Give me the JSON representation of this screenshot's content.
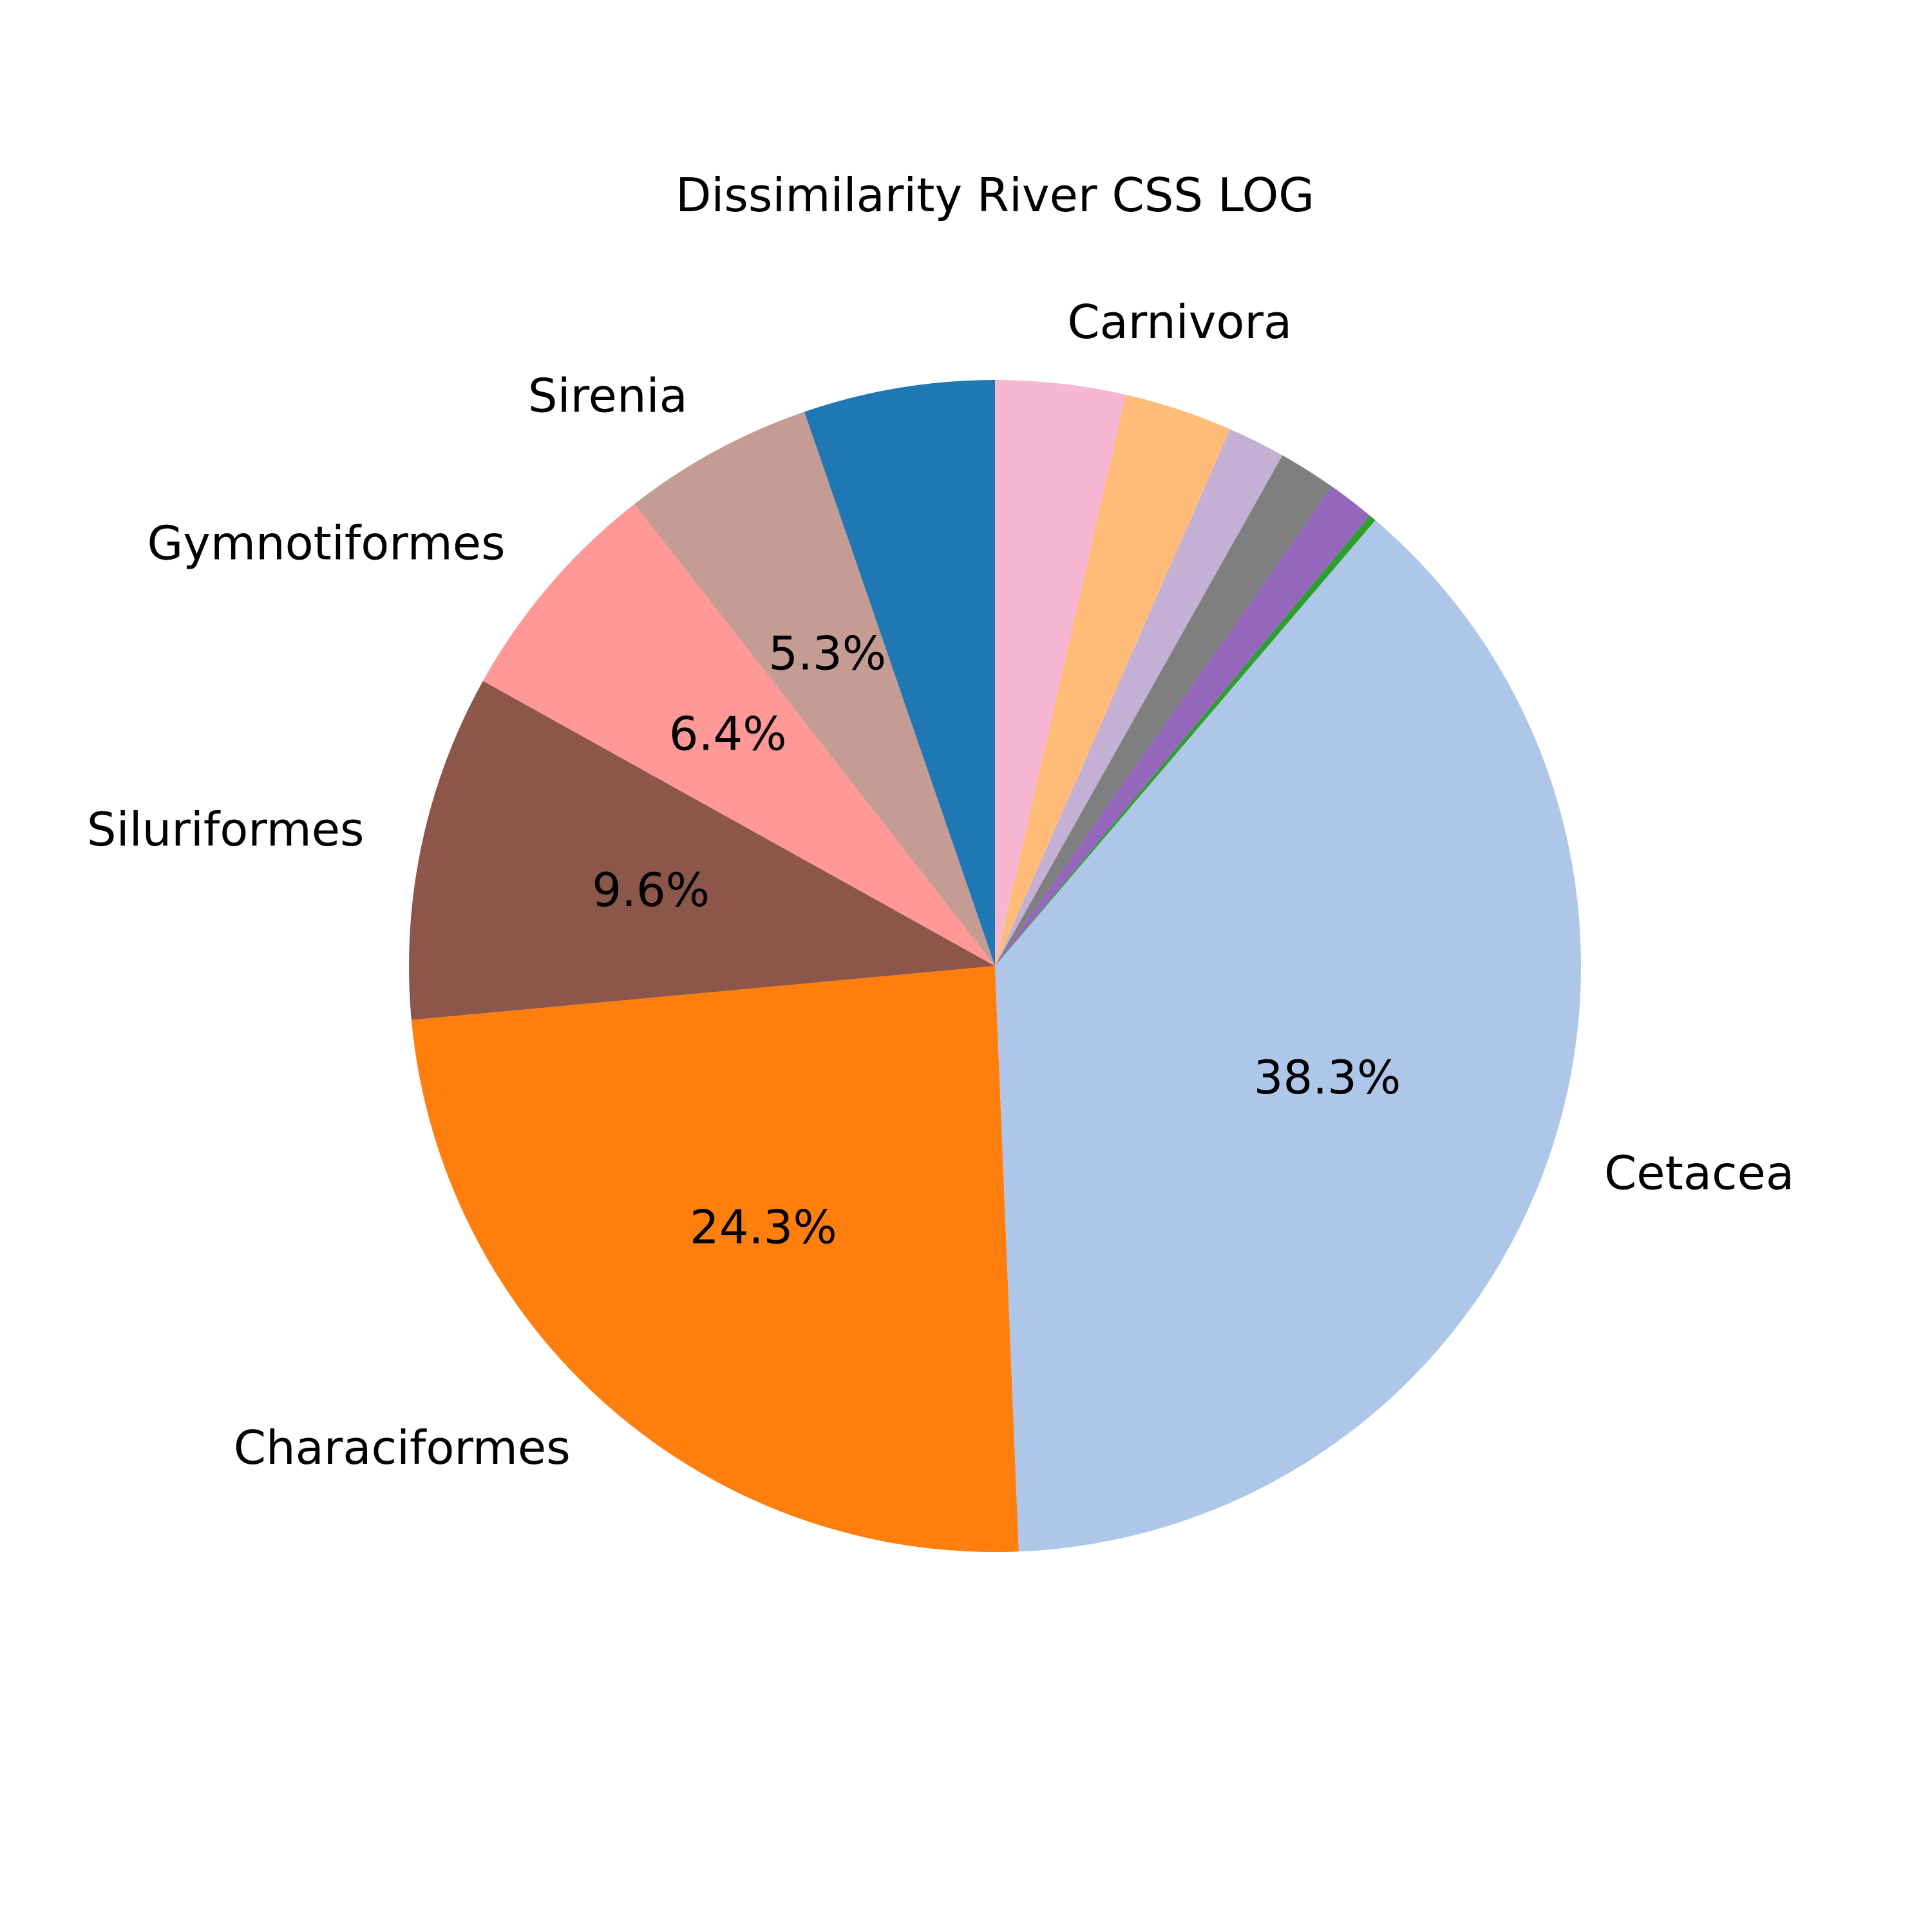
{
  "chart_data": {
    "type": "pie",
    "title": "Dissimilarity River CSS LOG",
    "start_angle_deg": 90,
    "direction": "counterclockwise",
    "slices": [
      {
        "label": "",
        "value": 5.3,
        "pct_label": "",
        "color": "#1f77b4"
      },
      {
        "label": "Sirenia",
        "value": 5.3,
        "pct_label": "5.3%",
        "color": "#c49c94"
      },
      {
        "label": "Gymnotiformes",
        "value": 6.4,
        "pct_label": "6.4%",
        "color": "#ff9896"
      },
      {
        "label": "Siluriformes",
        "value": 9.6,
        "pct_label": "9.6%",
        "color": "#8c564b"
      },
      {
        "label": "Characiformes",
        "value": 24.3,
        "pct_label": "24.3%",
        "color": "#ff7f0e"
      },
      {
        "label": "Cetacea",
        "value": 38.3,
        "pct_label": "38.3%",
        "color": "#aec7e8"
      },
      {
        "label": "",
        "value": 0.2,
        "pct_label": "",
        "color": "#2ca02c"
      },
      {
        "label": "",
        "value": 1.3,
        "pct_label": "",
        "color": "#9467bd"
      },
      {
        "label": "",
        "value": 1.6,
        "pct_label": "",
        "color": "#7f7f7f"
      },
      {
        "label": "",
        "value": 1.6,
        "pct_label": "",
        "color": "#c5b0d5"
      },
      {
        "label": "",
        "value": 3.0,
        "pct_label": "",
        "color": "#ffbb78"
      },
      {
        "label": "Carnivora",
        "value": 3.6,
        "pct_label": "",
        "color": "#f7b6d2"
      }
    ]
  }
}
